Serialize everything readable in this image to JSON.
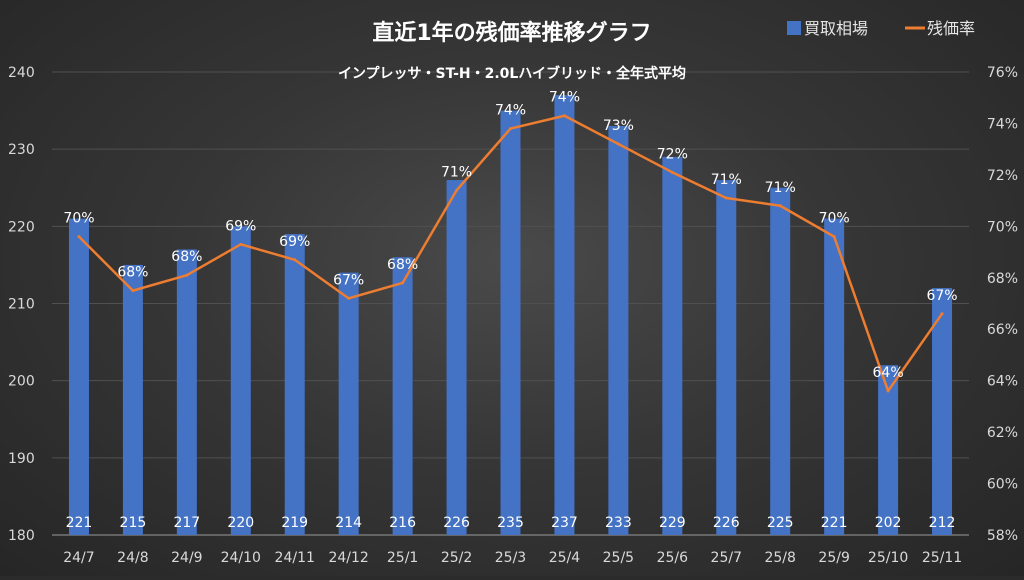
{
  "chart_data": {
    "type": "bar+line",
    "title": "直近1年の残価率推移グラフ",
    "subtitle": "インプレッサ・ST-H・2.0Lハイブリッド・全年式平均",
    "categories": [
      "24/7",
      "24/8",
      "24/9",
      "24/10",
      "24/11",
      "24/12",
      "25/1",
      "25/2",
      "25/3",
      "25/4",
      "25/5",
      "25/6",
      "25/7",
      "25/8",
      "25/9",
      "25/10",
      "25/11"
    ],
    "series": [
      {
        "name": "買取相場",
        "type": "bar",
        "axis": "left",
        "color": "#4472c4",
        "values": [
          221,
          215,
          217,
          220,
          219,
          214,
          216,
          226,
          235,
          237,
          233,
          229,
          226,
          225,
          221,
          202,
          212
        ],
        "labels": [
          "221",
          "215",
          "217",
          "220",
          "219",
          "214",
          "216",
          "226",
          "235",
          "237",
          "233",
          "229",
          "226",
          "225",
          "221",
          "202",
          "212"
        ]
      },
      {
        "name": "残価率",
        "type": "line",
        "axis": "right",
        "color": "#ed7d31",
        "values": [
          69.6,
          67.5,
          68.1,
          69.3,
          68.7,
          67.2,
          67.8,
          71.4,
          73.8,
          74.3,
          73.2,
          72.1,
          71.1,
          70.8,
          69.6,
          63.6,
          66.6
        ],
        "labels": [
          "70%",
          "68%",
          "68%",
          "69%",
          "69%",
          "67%",
          "68%",
          "71%",
          "74%",
          "74%",
          "73%",
          "72%",
          "71%",
          "71%",
          "70%",
          "64%",
          "67%"
        ]
      }
    ],
    "y_left": {
      "min": 180,
      "max": 240,
      "ticks": [
        "180",
        "190",
        "200",
        "210",
        "220",
        "230",
        "240"
      ]
    },
    "y_right": {
      "min": 58,
      "max": 76,
      "ticks": [
        "58%",
        "60%",
        "62%",
        "64%",
        "66%",
        "68%",
        "70%",
        "72%",
        "74%",
        "76%"
      ]
    },
    "grid": true,
    "legend": "top-right"
  }
}
